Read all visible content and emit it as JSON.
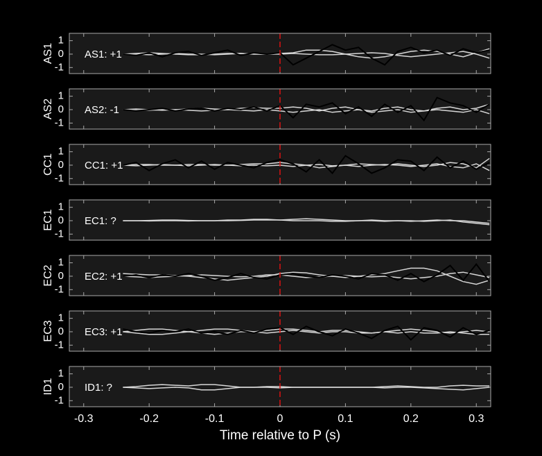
{
  "chart_data": [
    {
      "type": "line",
      "y_label": "AS1",
      "annotation": "AS1: +1",
      "annotation_color": "#cc1010",
      "marker_x": 0,
      "xlim": [
        -0.322,
        0.322
      ],
      "ylim": [
        -1.45,
        1.55
      ],
      "yticks": [
        -1,
        0,
        1
      ],
      "xticks": [
        -0.3,
        -0.2,
        -0.1,
        0,
        0.1,
        0.2,
        0.3
      ],
      "x": [
        -0.24,
        -0.22,
        -0.2,
        -0.18,
        -0.16,
        -0.14,
        -0.12,
        -0.1,
        -0.08,
        -0.06,
        -0.04,
        -0.02,
        0,
        0.02,
        0.04,
        0.06,
        0.08,
        0.1,
        0.12,
        0.14,
        0.16,
        0.18,
        0.2,
        0.22,
        0.24,
        0.26,
        0.28,
        0.3,
        0.32
      ],
      "series": [
        {
          "color": "#d8d8d8",
          "values": [
            0,
            0.05,
            0.1,
            0.05,
            0,
            -0.05,
            -0.05,
            0,
            0.05,
            0.05,
            0,
            0,
            0.05,
            0.1,
            0.3,
            0.3,
            0.2,
            0,
            -0.2,
            -0.3,
            -0.2,
            0,
            0.2,
            0.3,
            0.2,
            0,
            -0.2,
            0.1,
            0.4
          ]
        },
        {
          "color": "#d8d8d8",
          "values": [
            0,
            0,
            -0.05,
            0,
            0.05,
            0,
            0,
            -0.05,
            0,
            0.05,
            0,
            0,
            0,
            0.05,
            0,
            -0.05,
            -0.05,
            0,
            0.05,
            0.1,
            0.05,
            -0.1,
            -0.2,
            -0.1,
            0,
            0.1,
            0.2,
            0,
            -0.3
          ]
        },
        {
          "color": "#000000",
          "values": [
            0,
            -0.1,
            0.1,
            -0.2,
            0.1,
            0.2,
            -0.1,
            0.1,
            0.3,
            -0.1,
            0.1,
            0,
            0.1,
            -0.8,
            -0.3,
            0.2,
            0.7,
            0.3,
            0.5,
            -0.3,
            -0.8,
            0.2,
            0.5,
            0.1,
            0.3,
            -0.1,
            0.4,
            0.1,
            0.3
          ]
        }
      ]
    },
    {
      "type": "line",
      "y_label": "AS2",
      "annotation": "AS2: -1",
      "annotation_color": "#1010cc",
      "marker_x": 0,
      "xlim": [
        -0.322,
        0.322
      ],
      "ylim": [
        -1.45,
        1.55
      ],
      "yticks": [
        -1,
        0,
        1
      ],
      "xticks": [
        -0.3,
        -0.2,
        -0.1,
        0,
        0.1,
        0.2,
        0.3
      ],
      "x": [
        -0.24,
        -0.22,
        -0.2,
        -0.18,
        -0.16,
        -0.14,
        -0.12,
        -0.1,
        -0.08,
        -0.06,
        -0.04,
        -0.02,
        0,
        0.02,
        0.04,
        0.06,
        0.08,
        0.1,
        0.12,
        0.14,
        0.16,
        0.18,
        0.2,
        0.22,
        0.24,
        0.26,
        0.28,
        0.3,
        0.32
      ],
      "series": [
        {
          "color": "#d8d8d8",
          "values": [
            0,
            0.05,
            0,
            -0.05,
            0,
            0.05,
            0.1,
            0.05,
            0,
            0.1,
            0.15,
            0.1,
            0.1,
            0.2,
            0.1,
            -0.1,
            0.1,
            0.2,
            0,
            -0.1,
            0.1,
            0.2,
            0,
            -0.1,
            0.1,
            0.2,
            0,
            0.1,
            0.4
          ]
        },
        {
          "color": "#d8d8d8",
          "values": [
            0,
            -0.05,
            -0.05,
            0,
            0,
            -0.05,
            -0.1,
            -0.05,
            0,
            -0.05,
            -0.1,
            0,
            -0.1,
            -0.2,
            -0.1,
            0,
            -0.2,
            -0.1,
            0,
            -0.2,
            -0.1,
            0,
            -0.2,
            -0.1,
            0,
            -0.1,
            -0.2,
            0,
            -0.3
          ]
        },
        {
          "color": "#000000",
          "values": [
            0,
            -0.1,
            0,
            0.1,
            -0.1,
            0.05,
            0.1,
            -0.1,
            0.1,
            0,
            0.2,
            -0.1,
            0.3,
            -0.6,
            0.4,
            0.2,
            0.5,
            -0.3,
            0.2,
            -0.5,
            0.4,
            -0.2,
            0.3,
            -0.8,
            0.9,
            0.5,
            0.3,
            -0.2,
            0.4
          ]
        }
      ]
    },
    {
      "type": "line",
      "y_label": "CC1",
      "annotation": "CC1: +1",
      "annotation_color": "#cc1010",
      "marker_x": 0,
      "xlim": [
        -0.322,
        0.322
      ],
      "ylim": [
        -1.45,
        1.55
      ],
      "yticks": [
        -1,
        0,
        1
      ],
      "xticks": [
        -0.3,
        -0.2,
        -0.1,
        0,
        0.1,
        0.2,
        0.3
      ],
      "x": [
        -0.24,
        -0.22,
        -0.2,
        -0.18,
        -0.16,
        -0.14,
        -0.12,
        -0.1,
        -0.08,
        -0.06,
        -0.04,
        -0.02,
        0,
        0.02,
        0.04,
        0.06,
        0.08,
        0.1,
        0.12,
        0.14,
        0.16,
        0.18,
        0.2,
        0.22,
        0.24,
        0.26,
        0.28,
        0.3,
        0.32
      ],
      "series": [
        {
          "color": "#d8d8d8",
          "values": [
            0,
            0.05,
            0.05,
            0,
            0,
            0.05,
            0.05,
            0,
            0,
            0.05,
            0.1,
            0.1,
            0.2,
            0.1,
            0,
            -0.2,
            -0.1,
            0,
            0.1,
            0.05,
            0,
            0.1,
            0,
            -0.1,
            0,
            0.2,
            0.1,
            -0.2,
            0.5
          ]
        },
        {
          "color": "#d8d8d8",
          "values": [
            0,
            -0.05,
            0,
            0.05,
            0,
            -0.05,
            0,
            0.05,
            0,
            -0.05,
            0,
            -0.05,
            0,
            -0.1,
            0,
            0.05,
            -0.05,
            0,
            -0.1,
            0,
            0.05,
            0,
            -0.1,
            0,
            0.1,
            -0.1,
            -0.2,
            0.1,
            -0.4
          ]
        },
        {
          "color": "#000000",
          "values": [
            0,
            0.2,
            -0.4,
            0.1,
            0.4,
            -0.2,
            0.3,
            -0.3,
            0.2,
            0,
            -0.2,
            0.2,
            0.4,
            0.1,
            -0.5,
            0.4,
            -0.6,
            0.7,
            0.1,
            -0.6,
            -0.2,
            0.4,
            0.3,
            -0.4,
            0.6,
            -0.2,
            0.3,
            -0.3,
            0.2
          ]
        }
      ]
    },
    {
      "type": "line",
      "y_label": "EC1",
      "annotation": "EC1: ?",
      "annotation_color": "#8a8a8a",
      "xlim": [
        -0.322,
        0.322
      ],
      "ylim": [
        -1.45,
        1.55
      ],
      "yticks": [
        -1,
        0,
        1
      ],
      "xticks": [
        -0.3,
        -0.2,
        -0.1,
        0,
        0.1,
        0.2,
        0.3
      ],
      "x": [
        -0.24,
        -0.22,
        -0.2,
        -0.18,
        -0.16,
        -0.14,
        -0.12,
        -0.1,
        -0.08,
        -0.06,
        -0.04,
        -0.02,
        0,
        0.02,
        0.04,
        0.06,
        0.08,
        0.1,
        0.12,
        0.14,
        0.16,
        0.18,
        0.2,
        0.22,
        0.24,
        0.26,
        0.28,
        0.3,
        0.32
      ],
      "series": [
        {
          "color": "#d8d8d8",
          "values": [
            0,
            0,
            0.02,
            0.05,
            0.05,
            0.02,
            0,
            0,
            0.05,
            0.05,
            0.1,
            0.1,
            0.05,
            0.1,
            0.15,
            0.1,
            0.05,
            0,
            0,
            0.05,
            0,
            0,
            -0.05,
            0,
            0.05,
            0,
            0,
            -0.1,
            -0.2
          ]
        },
        {
          "color": "#d8d8d8",
          "values": [
            0,
            0,
            -0.02,
            0,
            0,
            -0.02,
            0,
            0,
            0,
            0.02,
            0.05,
            0.05,
            0.05,
            0,
            0,
            0,
            -0.05,
            -0.05,
            0,
            0,
            -0.05,
            0,
            0,
            -0.05,
            0,
            0.05,
            -0.1,
            -0.2,
            -0.3
          ]
        }
      ]
    },
    {
      "type": "line",
      "y_label": "EC2",
      "annotation": "EC2: +1",
      "annotation_color": "#cc1010",
      "marker_x": 0,
      "xlim": [
        -0.322,
        0.322
      ],
      "ylim": [
        -1.45,
        1.55
      ],
      "yticks": [
        -1,
        0,
        1
      ],
      "xticks": [
        -0.3,
        -0.2,
        -0.1,
        0,
        0.1,
        0.2,
        0.3
      ],
      "x": [
        -0.24,
        -0.22,
        -0.2,
        -0.18,
        -0.16,
        -0.14,
        -0.12,
        -0.1,
        -0.08,
        -0.06,
        -0.04,
        -0.02,
        0,
        0.02,
        0.04,
        0.06,
        0.08,
        0.1,
        0.12,
        0.14,
        0.16,
        0.18,
        0.2,
        0.22,
        0.24,
        0.26,
        0.28,
        0.3,
        0.32
      ],
      "series": [
        {
          "color": "#d8d8d8",
          "values": [
            0.2,
            0.15,
            0.1,
            0.1,
            0.05,
            0,
            -0.1,
            -0.2,
            -0.3,
            -0.2,
            -0.1,
            0,
            0.2,
            0.3,
            0.25,
            0.1,
            0,
            -0.1,
            0,
            0.1,
            0.2,
            0.4,
            0.6,
            0.6,
            0.4,
            0,
            -0.4,
            -0.6,
            -0.3
          ]
        },
        {
          "color": "#d8d8d8",
          "values": [
            0,
            -0.05,
            -0.1,
            -0.05,
            0,
            0.05,
            0.1,
            0.05,
            0,
            -0.05,
            0,
            0.1,
            0.1,
            0,
            -0.1,
            -0.05,
            0,
            0.05,
            0,
            -0.05,
            0,
            -0.1,
            -0.2,
            -0.1,
            0,
            0.2,
            0.3,
            0.1,
            -0.1
          ]
        },
        {
          "color": "#000000",
          "values": [
            0,
            0.1,
            -0.1,
            0.1,
            0,
            0.2,
            0,
            -0.3,
            -0.1,
            0.2,
            -0.1,
            -0.2,
            0.1,
            0.2,
            0,
            -0.1,
            0.1,
            0,
            -0.2,
            0.2,
            0.1,
            -0.3,
            0.2,
            -0.4,
            0.1,
            0.8,
            -0.3,
            0.9,
            -0.4
          ]
        }
      ]
    },
    {
      "type": "line",
      "y_label": "EC3",
      "annotation": "EC3: +1",
      "annotation_color": "#cc1010",
      "marker_x": 0,
      "xlim": [
        -0.322,
        0.322
      ],
      "ylim": [
        -1.45,
        1.55
      ],
      "yticks": [
        -1,
        0,
        1
      ],
      "xticks": [
        -0.3,
        -0.2,
        -0.1,
        0,
        0.1,
        0.2,
        0.3
      ],
      "x": [
        -0.24,
        -0.22,
        -0.2,
        -0.18,
        -0.16,
        -0.14,
        -0.12,
        -0.1,
        -0.08,
        -0.06,
        -0.04,
        -0.02,
        0,
        0.02,
        0.04,
        0.06,
        0.08,
        0.1,
        0.12,
        0.14,
        0.16,
        0.18,
        0.2,
        0.22,
        0.24,
        0.26,
        0.28,
        0.3,
        0.32
      ],
      "series": [
        {
          "color": "#d8d8d8",
          "values": [
            0,
            0.1,
            0.2,
            0.2,
            0.1,
            0,
            0.1,
            0.2,
            0.2,
            0.1,
            0,
            0.1,
            0.2,
            0.2,
            0.1,
            0,
            0.1,
            0.1,
            0,
            -0.1,
            0,
            0.1,
            0.2,
            0.1,
            0,
            -0.1,
            0,
            0.1,
            0
          ]
        },
        {
          "color": "#d8d8d8",
          "values": [
            0,
            -0.1,
            -0.2,
            -0.2,
            -0.1,
            0,
            -0.1,
            -0.2,
            -0.1,
            0,
            0,
            -0.1,
            0,
            0.1,
            0,
            -0.1,
            0,
            0,
            -0.1,
            -0.1,
            0,
            -0.1,
            0,
            -0.1,
            -0.1,
            0,
            -0.1,
            -0.2,
            -0.2
          ]
        },
        {
          "color": "#000000",
          "values": [
            0.2,
            0,
            -0.1,
            0.1,
            0,
            0.2,
            -0.1,
            0,
            -0.2,
            0.1,
            -0.1,
            0.2,
            0.3,
            -0.2,
            0.4,
            0,
            -0.3,
            0.2,
            -0.1,
            -0.5,
            0.1,
            0.4,
            -0.6,
            0.3,
            0.1,
            -0.4,
            0.3,
            -0.2,
            0.1
          ]
        }
      ]
    },
    {
      "type": "line",
      "y_label": "ID1",
      "annotation": "ID1: ?",
      "annotation_color": "#8a8a8a",
      "marker_x": 0,
      "xlabel": "Time relative to P (s)",
      "xlim": [
        -0.322,
        0.322
      ],
      "ylim": [
        -1.45,
        1.55
      ],
      "yticks": [
        -1,
        0,
        1
      ],
      "xticks": [
        -0.3,
        -0.2,
        -0.1,
        0,
        0.1,
        0.2,
        0.3
      ],
      "x": [
        -0.24,
        -0.22,
        -0.2,
        -0.18,
        -0.16,
        -0.14,
        -0.12,
        -0.1,
        -0.08,
        -0.06,
        -0.04,
        -0.02,
        0,
        0.02,
        0.04,
        0.06,
        0.08,
        0.1,
        0.12,
        0.14,
        0.16,
        0.18,
        0.2,
        0.22,
        0.24,
        0.26,
        0.28,
        0.3,
        0.32
      ],
      "series": [
        {
          "color": "#d8d8d8",
          "values": [
            0,
            0.05,
            0.15,
            0.2,
            0.15,
            0.1,
            0.2,
            0.2,
            0.1,
            0,
            0,
            0.05,
            0.05,
            0,
            0,
            0,
            0,
            0,
            0,
            0,
            0.05,
            0.1,
            0.05,
            0,
            0,
            0.1,
            0.15,
            0.1,
            0.1
          ]
        },
        {
          "color": "#d8d8d8",
          "values": [
            0,
            -0.05,
            -0.1,
            -0.05,
            0,
            -0.05,
            -0.2,
            -0.2,
            -0.1,
            0,
            0,
            0,
            -0.05,
            0,
            0,
            0,
            0,
            0,
            0,
            0,
            -0.05,
            0,
            0,
            -0.05,
            -0.1,
            -0.15,
            -0.2,
            -0.1,
            0
          ]
        }
      ]
    }
  ]
}
